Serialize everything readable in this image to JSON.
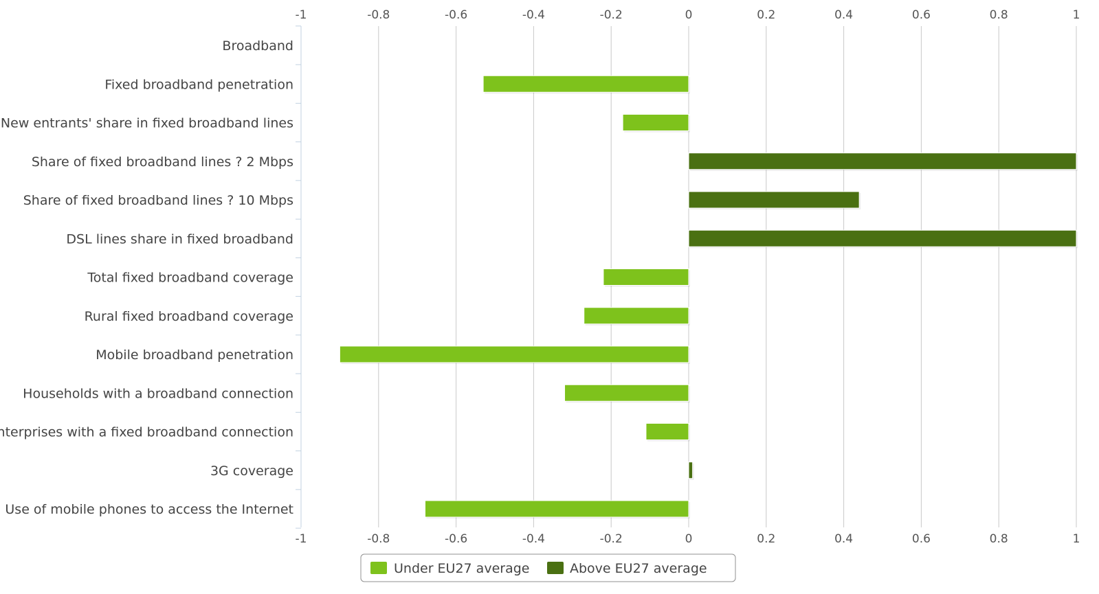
{
  "chart_data": {
    "type": "bar",
    "orientation": "horizontal",
    "categories": [
      "Broadband",
      "Fixed broadband penetration",
      "New entrants' share in fixed broadband lines",
      "Share of fixed broadband lines ? 2 Mbps",
      "Share of fixed broadband lines ? 10 Mbps",
      "DSL lines share in fixed broadband",
      "Total fixed broadband coverage",
      "Rural fixed broadband coverage",
      "Mobile broadband penetration",
      "Households with a broadband connection",
      "Enterprises with a fixed broadband connection",
      "3G coverage",
      "Use of mobile phones to access the Internet"
    ],
    "series": [
      {
        "name": "Under EU27 average",
        "color": "#7ec21c",
        "values": [
          null,
          -0.53,
          -0.17,
          null,
          null,
          null,
          -0.22,
          -0.27,
          -0.9,
          -0.32,
          -0.11,
          null,
          -0.68
        ]
      },
      {
        "name": "Above EU27 average",
        "color": "#4a7012",
        "values": [
          null,
          null,
          null,
          1.0,
          0.44,
          1.0,
          null,
          null,
          null,
          null,
          null,
          0.01,
          null
        ]
      }
    ],
    "xlim": [
      -1,
      1
    ],
    "xticks": [
      -1,
      -0.8,
      -0.6,
      -0.4,
      -0.2,
      0,
      0.2,
      0.4,
      0.6,
      0.8,
      1
    ],
    "xtick_labels": [
      "-1",
      "-0.8",
      "-0.6",
      "-0.4",
      "-0.2",
      "0",
      "0.2",
      "0.4",
      "0.6",
      "0.8",
      "1"
    ],
    "grid": true,
    "legend_position": "bottom"
  }
}
